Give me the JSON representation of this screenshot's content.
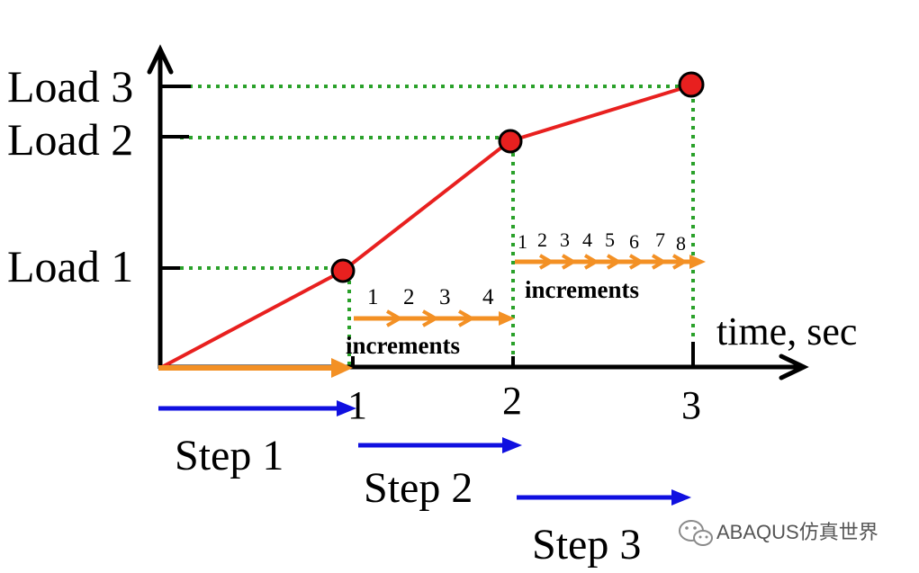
{
  "diagram": {
    "y_labels": [
      "Load 1",
      "Load 2",
      "Load 3"
    ],
    "x_label": "time, sec",
    "x_ticks": [
      "1",
      "2",
      "3"
    ],
    "steps": [
      "Step 1",
      "Step 2",
      "Step 3"
    ],
    "step2_increment_numbers": [
      "1",
      "2",
      "3",
      "4"
    ],
    "step3_increment_numbers": [
      "1",
      "2",
      "3",
      "4",
      "5",
      "6",
      "7",
      "8"
    ],
    "increments_label": "increments",
    "load_path": [
      {
        "time": 0,
        "load": 0
      },
      {
        "time": 1,
        "load": 1
      },
      {
        "time": 2,
        "load": 2
      },
      {
        "time": 3,
        "load": 3
      }
    ],
    "colors": {
      "load_curve": "#e8201f",
      "points": "#e8201f",
      "guides": "#2aa12a",
      "increments": "#f39024",
      "steps": "#1010e0",
      "axes": "#000000"
    }
  },
  "watermark": {
    "icon": "wechat-icon",
    "text": "ABAQUS仿真世界"
  }
}
